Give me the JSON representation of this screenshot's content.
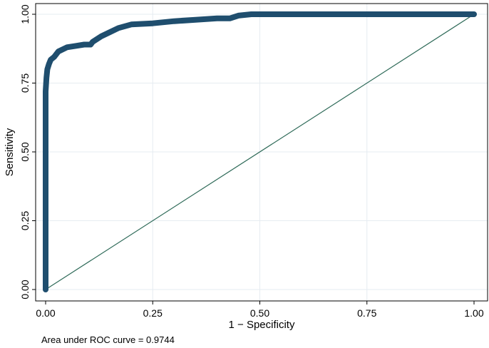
{
  "chart_data": {
    "type": "line",
    "xlabel": "1 − Specificity",
    "ylabel": "Sensitivity",
    "xlim": [
      0,
      1
    ],
    "ylim": [
      0,
      1
    ],
    "x_ticks": [
      "0.00",
      "0.25",
      "0.50",
      "0.75",
      "1.00"
    ],
    "y_ticks": [
      "0.00",
      "0.25",
      "0.50",
      "0.75",
      "1.00"
    ],
    "grid": true,
    "note": "Area under ROC curve = 0.9744",
    "colors": {
      "roc": "#1f4e6e",
      "reference": "#2e6a58",
      "grid": "#e6ecf1",
      "frame": "#000000"
    },
    "series": [
      {
        "x": [
          0,
          0,
          0,
          0,
          0.002,
          0.004,
          0.006,
          0.008,
          0.012,
          0.02,
          0.03,
          0.05,
          0.07,
          0.09,
          0.105,
          0.11,
          0.13,
          0.15,
          0.17,
          0.2,
          0.25,
          0.3,
          0.35,
          0.4,
          0.43,
          0.45,
          0.48,
          0.5,
          0.6,
          0.8,
          1.0
        ],
        "y": [
          0,
          0.3,
          0.6,
          0.72,
          0.77,
          0.8,
          0.81,
          0.82,
          0.835,
          0.845,
          0.865,
          0.88,
          0.885,
          0.89,
          0.89,
          0.9,
          0.92,
          0.935,
          0.95,
          0.963,
          0.967,
          0.975,
          0.98,
          0.985,
          0.985,
          0.995,
          1.0,
          1.0,
          1.0,
          1.0,
          1.0
        ]
      },
      {
        "x": [
          0,
          1
        ],
        "y": [
          0,
          1
        ]
      }
    ]
  }
}
